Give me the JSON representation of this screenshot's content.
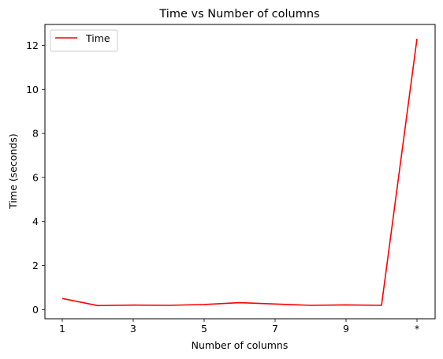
{
  "chart_data": {
    "type": "line",
    "title": "Time vs Number of columns",
    "xlabel": "Number of columns",
    "ylabel": "Time (seconds)",
    "x": [
      "1",
      "2",
      "3",
      "4",
      "5",
      "6",
      "7",
      "8",
      "9",
      "10",
      "*"
    ],
    "x_tick_labels": [
      "1",
      "3",
      "5",
      "7",
      "9",
      "*"
    ],
    "ylim": [
      -0.42,
      12.95
    ],
    "y_ticks": [
      0,
      2,
      4,
      6,
      8,
      10,
      12
    ],
    "series": [
      {
        "name": "Time",
        "color": "#ff0000",
        "values": [
          0.5,
          0.18,
          0.2,
          0.19,
          0.23,
          0.31,
          0.25,
          0.19,
          0.21,
          0.19,
          12.3
        ]
      }
    ],
    "legend": {
      "position": "upper-left"
    },
    "grid": false
  }
}
